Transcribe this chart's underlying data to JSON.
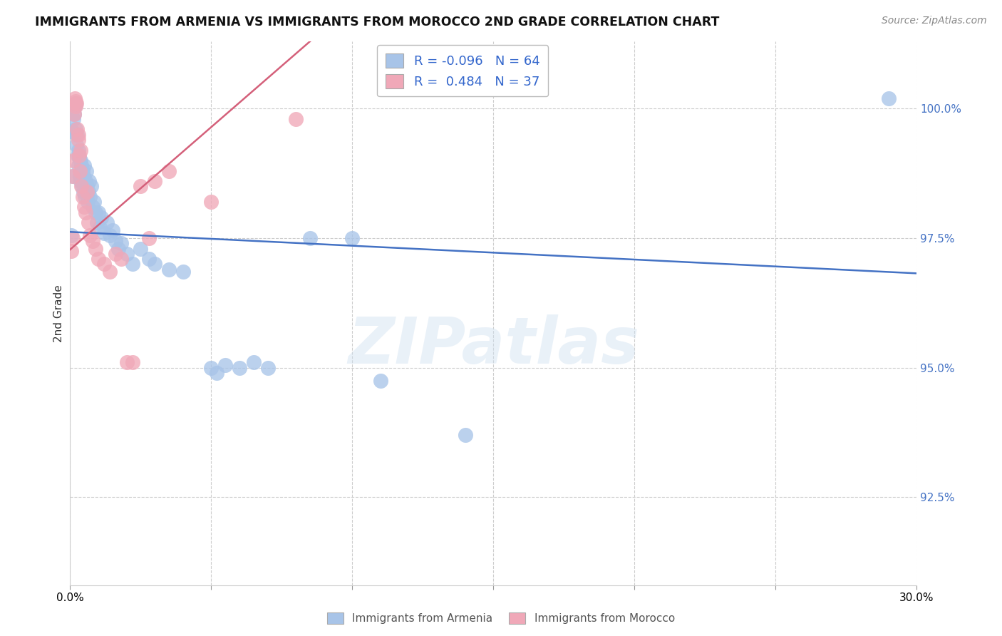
{
  "title": "IMMIGRANTS FROM ARMENIA VS IMMIGRANTS FROM MOROCCO 2ND GRADE CORRELATION CHART",
  "source": "Source: ZipAtlas.com",
  "ylabel": "2nd Grade",
  "ylim": [
    90.8,
    101.3
  ],
  "xlim": [
    0.0,
    30.0
  ],
  "yticks": [
    92.5,
    95.0,
    97.5,
    100.0
  ],
  "ytick_labels": [
    "92.5%",
    "95.0%",
    "97.5%",
    "100.0%"
  ],
  "legend_r_armenia": "-0.096",
  "legend_n_armenia": "64",
  "legend_r_morocco": "0.484",
  "legend_n_morocco": "37",
  "armenia_color": "#a8c4e8",
  "morocco_color": "#f0a8b8",
  "armenia_line_color": "#4472c4",
  "morocco_line_color": "#d4607a",
  "background_color": "#ffffff",
  "grid_color": "#c8c8c8",
  "armenia_line": [
    [
      0.0,
      97.62
    ],
    [
      30.0,
      96.82
    ]
  ],
  "morocco_line": [
    [
      0.0,
      97.28
    ],
    [
      8.5,
      101.3
    ]
  ],
  "armenia_points": [
    [
      0.05,
      97.55
    ],
    [
      0.08,
      99.55
    ],
    [
      0.1,
      98.7
    ],
    [
      0.12,
      99.8
    ],
    [
      0.15,
      99.9
    ],
    [
      0.17,
      100.05
    ],
    [
      0.18,
      100.1
    ],
    [
      0.2,
      99.6
    ],
    [
      0.22,
      99.3
    ],
    [
      0.24,
      99.5
    ],
    [
      0.26,
      99.1
    ],
    [
      0.28,
      98.9
    ],
    [
      0.3,
      99.2
    ],
    [
      0.32,
      99.05
    ],
    [
      0.34,
      98.7
    ],
    [
      0.36,
      99.0
    ],
    [
      0.38,
      98.6
    ],
    [
      0.4,
      98.9
    ],
    [
      0.42,
      98.5
    ],
    [
      0.44,
      98.8
    ],
    [
      0.46,
      98.4
    ],
    [
      0.48,
      98.7
    ],
    [
      0.5,
      98.9
    ],
    [
      0.52,
      98.3
    ],
    [
      0.54,
      98.6
    ],
    [
      0.56,
      98.8
    ],
    [
      0.6,
      98.5
    ],
    [
      0.62,
      98.2
    ],
    [
      0.65,
      98.4
    ],
    [
      0.68,
      98.6
    ],
    [
      0.7,
      98.3
    ],
    [
      0.75,
      98.5
    ],
    [
      0.8,
      98.1
    ],
    [
      0.85,
      98.2
    ],
    [
      0.9,
      98.0
    ],
    [
      0.95,
      97.8
    ],
    [
      1.0,
      98.0
    ],
    [
      1.05,
      97.7
    ],
    [
      1.1,
      97.9
    ],
    [
      1.2,
      97.6
    ],
    [
      1.3,
      97.8
    ],
    [
      1.4,
      97.55
    ],
    [
      1.5,
      97.65
    ],
    [
      1.6,
      97.45
    ],
    [
      1.7,
      97.3
    ],
    [
      1.8,
      97.4
    ],
    [
      2.0,
      97.2
    ],
    [
      2.2,
      97.0
    ],
    [
      2.5,
      97.3
    ],
    [
      2.8,
      97.1
    ],
    [
      3.0,
      97.0
    ],
    [
      3.5,
      96.9
    ],
    [
      4.0,
      96.85
    ],
    [
      5.0,
      95.0
    ],
    [
      5.2,
      94.9
    ],
    [
      5.5,
      95.05
    ],
    [
      6.0,
      95.0
    ],
    [
      6.5,
      95.1
    ],
    [
      7.0,
      95.0
    ],
    [
      8.5,
      97.5
    ],
    [
      10.0,
      97.5
    ],
    [
      11.0,
      94.75
    ],
    [
      14.0,
      93.7
    ],
    [
      29.0,
      100.2
    ]
  ],
  "morocco_points": [
    [
      0.05,
      97.25
    ],
    [
      0.08,
      97.5
    ],
    [
      0.1,
      98.7
    ],
    [
      0.12,
      99.0
    ],
    [
      0.15,
      99.9
    ],
    [
      0.17,
      100.2
    ],
    [
      0.18,
      100.15
    ],
    [
      0.2,
      100.05
    ],
    [
      0.22,
      100.1
    ],
    [
      0.25,
      99.6
    ],
    [
      0.28,
      99.5
    ],
    [
      0.3,
      99.4
    ],
    [
      0.32,
      99.1
    ],
    [
      0.35,
      98.8
    ],
    [
      0.38,
      99.2
    ],
    [
      0.4,
      98.5
    ],
    [
      0.45,
      98.3
    ],
    [
      0.5,
      98.1
    ],
    [
      0.55,
      98.0
    ],
    [
      0.6,
      98.4
    ],
    [
      0.65,
      97.8
    ],
    [
      0.7,
      97.55
    ],
    [
      0.8,
      97.45
    ],
    [
      0.9,
      97.3
    ],
    [
      1.0,
      97.1
    ],
    [
      1.2,
      97.0
    ],
    [
      1.4,
      96.85
    ],
    [
      1.6,
      97.2
    ],
    [
      1.8,
      97.1
    ],
    [
      2.0,
      95.1
    ],
    [
      2.2,
      95.1
    ],
    [
      2.5,
      98.5
    ],
    [
      2.8,
      97.5
    ],
    [
      3.0,
      98.6
    ],
    [
      3.5,
      98.8
    ],
    [
      5.0,
      98.2
    ],
    [
      8.0,
      99.8
    ]
  ]
}
